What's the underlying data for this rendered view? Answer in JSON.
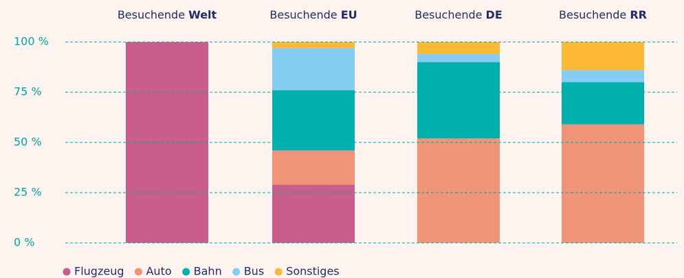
{
  "chart_data": {
    "type": "stacked_bar",
    "categories": [
      "Besuchende Welt",
      "Besuchende EU",
      "Besuchende DE",
      "Besuchende RR"
    ],
    "series": [
      {
        "name": "Flugzeug",
        "color": "#c95d8c",
        "values": [
          100,
          29,
          0,
          0
        ]
      },
      {
        "name": "Auto",
        "color": "#f09478",
        "values": [
          0,
          17,
          52,
          59
        ]
      },
      {
        "name": "Bahn",
        "color": "#00b0ad",
        "values": [
          0,
          30,
          38,
          21
        ]
      },
      {
        "name": "Bus",
        "color": "#85cdf2",
        "values": [
          0,
          21,
          4,
          6
        ]
      },
      {
        "name": "Sonstiges",
        "color": "#fbb935",
        "values": [
          0,
          3,
          6,
          14
        ]
      }
    ],
    "ylim": [
      0,
      100
    ],
    "yticks": [
      {
        "value": 0,
        "label": "0 %"
      },
      {
        "value": 25,
        "label": "25 %"
      },
      {
        "value": 50,
        "label": "50 %"
      },
      {
        "value": 75,
        "label": "75 %"
      },
      {
        "value": 100,
        "label": "100 %"
      }
    ],
    "grid": true,
    "legend": "bottom"
  }
}
